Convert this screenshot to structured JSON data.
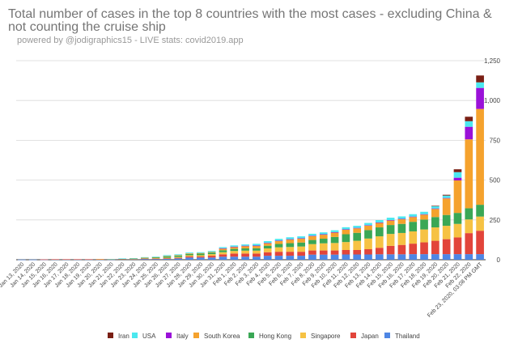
{
  "chart_data": {
    "type": "bar",
    "stacked": true,
    "title": "Total number of cases in the top 8 countries with the most cases - excluding China & not counting the cruise ship",
    "subtitle": "powered by @jodigraphics15 - LIVE stats: covid2019.app",
    "ylim": [
      0,
      1250
    ],
    "yticks": [
      0,
      250,
      500,
      750,
      1000,
      1250
    ],
    "ytick_labels": [
      "0",
      "250",
      "500",
      "750",
      "1,000",
      "1,250"
    ],
    "y_axis_position": "right",
    "grid": true,
    "legend_position": "bottom",
    "categories": [
      "Jan 13, 2020",
      "Jan 14, 2020",
      "Jan 15, 2020",
      "Jan 16, 2020",
      "Jan 17, 2020",
      "Jan 18, 2020",
      "Jan 19, 2020",
      "Jan 20, 2020",
      "Jan 21, 2020",
      "Jan 22, 2020",
      "Jan 23, 2020",
      "Jan 24, 2020",
      "Jan 25, 2020",
      "Jan 26, 2020",
      "Jan 27, 2020",
      "Jan 28, 2020",
      "Jan 29, 2020",
      "Jan 30, 2020",
      "Jan 31, 2020",
      "Feb 1, 2020",
      "Feb 2, 2020",
      "Feb 3, 2020",
      "Feb 4, 2020",
      "Feb 5, 2020",
      "Feb 6, 2020",
      "Feb 7, 2020",
      "Feb 8, 2020",
      "Feb 9, 2020",
      "Feb 10, 2020",
      "Feb 11, 2020",
      "Feb 12, 2020",
      "Feb 13, 2020",
      "Feb 14, 2020",
      "Feb 15, 2020",
      "Feb 16, 2020",
      "Feb 17, 2020",
      "Feb 18, 2020",
      "Feb 19, 2020",
      "Feb 20, 2020",
      "Feb 21, 2020",
      "Feb 22, 2020",
      "Feb 23, 2020, 03:08 PM GMT"
    ],
    "series": [
      {
        "name": "Thailand",
        "color": "#4e86e4",
        "values": [
          1,
          1,
          1,
          2,
          2,
          2,
          2,
          2,
          2,
          3,
          4,
          5,
          5,
          5,
          8,
          14,
          14,
          14,
          19,
          19,
          19,
          19,
          25,
          25,
          25,
          25,
          32,
          32,
          32,
          33,
          33,
          33,
          34,
          34,
          34,
          35,
          35,
          35,
          35,
          35,
          35,
          35
        ]
      },
      {
        "name": "Japan",
        "color": "#e2443a",
        "values": [
          0,
          0,
          1,
          1,
          1,
          1,
          1,
          1,
          1,
          1,
          1,
          2,
          2,
          4,
          4,
          7,
          7,
          11,
          15,
          20,
          20,
          20,
          22,
          25,
          25,
          25,
          26,
          26,
          26,
          28,
          28,
          33,
          41,
          53,
          59,
          66,
          74,
          84,
          94,
          105,
          132,
          147
        ]
      },
      {
        "name": "Singapore",
        "color": "#f6c243",
        "values": [
          0,
          0,
          0,
          0,
          0,
          0,
          0,
          0,
          0,
          0,
          1,
          3,
          3,
          4,
          5,
          7,
          7,
          10,
          13,
          16,
          18,
          18,
          24,
          28,
          30,
          33,
          40,
          45,
          47,
          50,
          58,
          67,
          72,
          75,
          75,
          77,
          81,
          84,
          84,
          85,
          86,
          89
        ]
      },
      {
        "name": "Hong Kong",
        "color": "#3aa755",
        "values": [
          0,
          0,
          0,
          0,
          0,
          0,
          0,
          0,
          0,
          2,
          2,
          2,
          5,
          8,
          8,
          8,
          10,
          10,
          12,
          13,
          14,
          15,
          17,
          21,
          24,
          25,
          26,
          29,
          38,
          49,
          50,
          53,
          56,
          56,
          57,
          60,
          62,
          65,
          68,
          69,
          70,
          74
        ]
      },
      {
        "name": "South Korea",
        "color": "#f5a22d",
        "values": [
          0,
          0,
          0,
          0,
          0,
          0,
          0,
          1,
          1,
          1,
          1,
          2,
          2,
          3,
          4,
          4,
          4,
          4,
          11,
          12,
          15,
          15,
          16,
          19,
          23,
          24,
          24,
          25,
          27,
          28,
          28,
          28,
          28,
          28,
          29,
          30,
          31,
          51,
          104,
          204,
          433,
          602
        ]
      },
      {
        "name": "Italy",
        "color": "#9a11d8",
        "values": [
          0,
          0,
          0,
          0,
          0,
          0,
          0,
          0,
          0,
          0,
          0,
          0,
          0,
          0,
          0,
          0,
          0,
          0,
          2,
          2,
          2,
          2,
          2,
          2,
          2,
          3,
          3,
          3,
          3,
          3,
          3,
          3,
          3,
          3,
          3,
          3,
          3,
          3,
          3,
          17,
          79,
          132
        ]
      },
      {
        "name": "USA",
        "color": "#4be8ef",
        "values": [
          0,
          0,
          0,
          0,
          0,
          0,
          0,
          0,
          1,
          1,
          1,
          2,
          2,
          5,
          5,
          5,
          5,
          6,
          7,
          8,
          8,
          11,
          11,
          11,
          12,
          12,
          12,
          12,
          12,
          13,
          13,
          14,
          15,
          15,
          15,
          15,
          15,
          15,
          15,
          35,
          35,
          35
        ]
      },
      {
        "name": "Iran",
        "color": "#7a1f14",
        "values": [
          0,
          0,
          0,
          0,
          0,
          0,
          0,
          0,
          0,
          0,
          0,
          0,
          0,
          0,
          0,
          0,
          0,
          0,
          0,
          0,
          0,
          0,
          0,
          0,
          0,
          0,
          0,
          0,
          0,
          0,
          0,
          0,
          0,
          0,
          0,
          0,
          0,
          2,
          5,
          18,
          28,
          43
        ]
      }
    ]
  }
}
